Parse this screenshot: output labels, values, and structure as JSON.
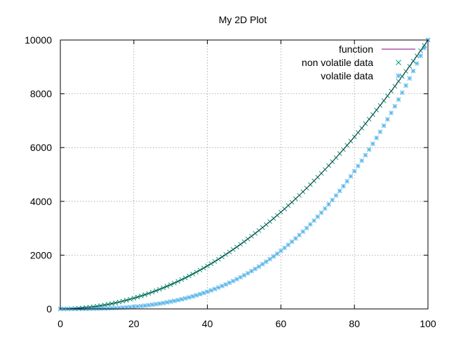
{
  "chart_data": {
    "type": "line",
    "title": "My 2D Plot",
    "xlabel": "",
    "ylabel": "",
    "xlim": [
      0,
      100
    ],
    "ylim": [
      0,
      10000
    ],
    "x_ticks": [
      0,
      20,
      40,
      60,
      80,
      100
    ],
    "y_ticks": [
      0,
      2000,
      4000,
      6000,
      8000,
      10000
    ],
    "grid": true,
    "legend_position": "top-right",
    "series": [
      {
        "name": "function",
        "style": "line",
        "color": "#800080",
        "formula": "y = x^2",
        "x": [
          0,
          100
        ],
        "y": [
          0,
          10000
        ]
      },
      {
        "name": "non volatile data",
        "style": "cross",
        "color": "#009e73",
        "x_range": [
          0,
          100
        ],
        "x_step": 1,
        "formula": "y = x^2"
      },
      {
        "name": "volatile data",
        "style": "star",
        "color": "#56b4e9",
        "x_range": [
          0,
          100
        ],
        "x_step": 1,
        "formula": "y = x^3 / 100"
      }
    ]
  }
}
